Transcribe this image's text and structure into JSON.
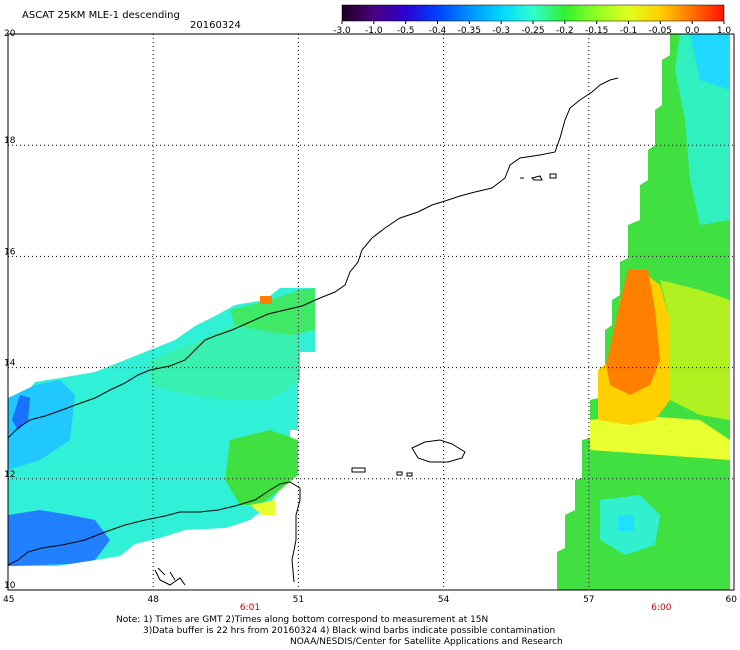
{
  "header": {
    "title": "ASCAT 25KM MLE-1 descending",
    "date": "20160324"
  },
  "colorbar": {
    "labels": [
      "-3.0",
      "-1.0",
      "-0.5",
      "-0.4",
      "-0.35",
      "-0.3",
      "-0.25",
      "-0.2",
      "-0.15",
      "-0.1",
      "-0.05",
      "0.0",
      "1.0"
    ],
    "colors": [
      "#1a0020",
      "#4a0080",
      "#2a00d0",
      "#0040ff",
      "#0090ff",
      "#00d8ff",
      "#30ffd0",
      "#30f030",
      "#90ff20",
      "#e0ff20",
      "#ffd000",
      "#ff7000",
      "#ff1000"
    ]
  },
  "map": {
    "lon_ticks": [
      "45",
      "48",
      "51",
      "54",
      "57",
      "60"
    ],
    "lat_ticks": [
      "10",
      "12",
      "14",
      "16",
      "18",
      "20"
    ],
    "lon_range": [
      45,
      60
    ],
    "lat_range": [
      10,
      20
    ],
    "grid": "dotted",
    "times": [
      {
        "label": "6:01",
        "lon": 50
      },
      {
        "label": "6:00",
        "lon": 58.5
      }
    ]
  },
  "notes": [
    "Note: 1) Times are GMT 2)Times along bottom correspond to measurement at 15N",
    "3)Data buffer is 22 hrs from 20160324 4) Black wind barbs indicate possible contamination",
    "NOAA/NESDIS/Center for Satellite Applications and Research"
  ]
}
